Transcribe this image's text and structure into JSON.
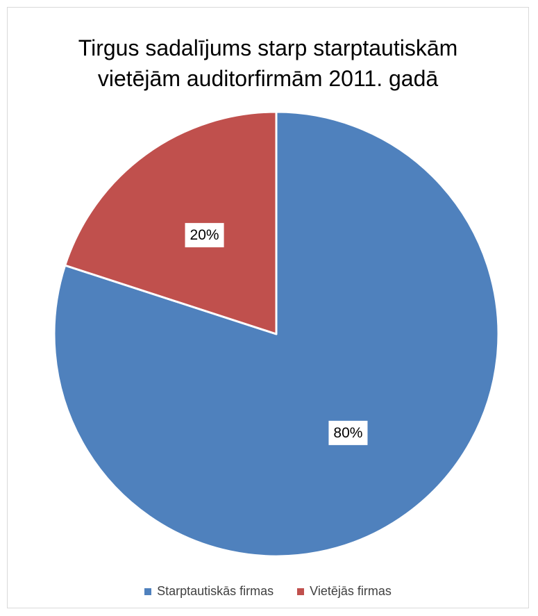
{
  "chart_data": {
    "type": "pie",
    "title_lines": [
      "Tirgus sadalījums starp starptautiskām",
      "vietējām auditorfirmām 2011. gadā"
    ],
    "slices": [
      {
        "label": "Starptautiskās firmas",
        "value": 80,
        "data_label": "80%",
        "color": "#4f81bd"
      },
      {
        "label": "Vietējās firmas",
        "value": 20,
        "data_label": "20%",
        "color": "#c0504d"
      }
    ],
    "start_angle_deg": 0,
    "direction": "clockwise",
    "legend_position": "bottom"
  }
}
